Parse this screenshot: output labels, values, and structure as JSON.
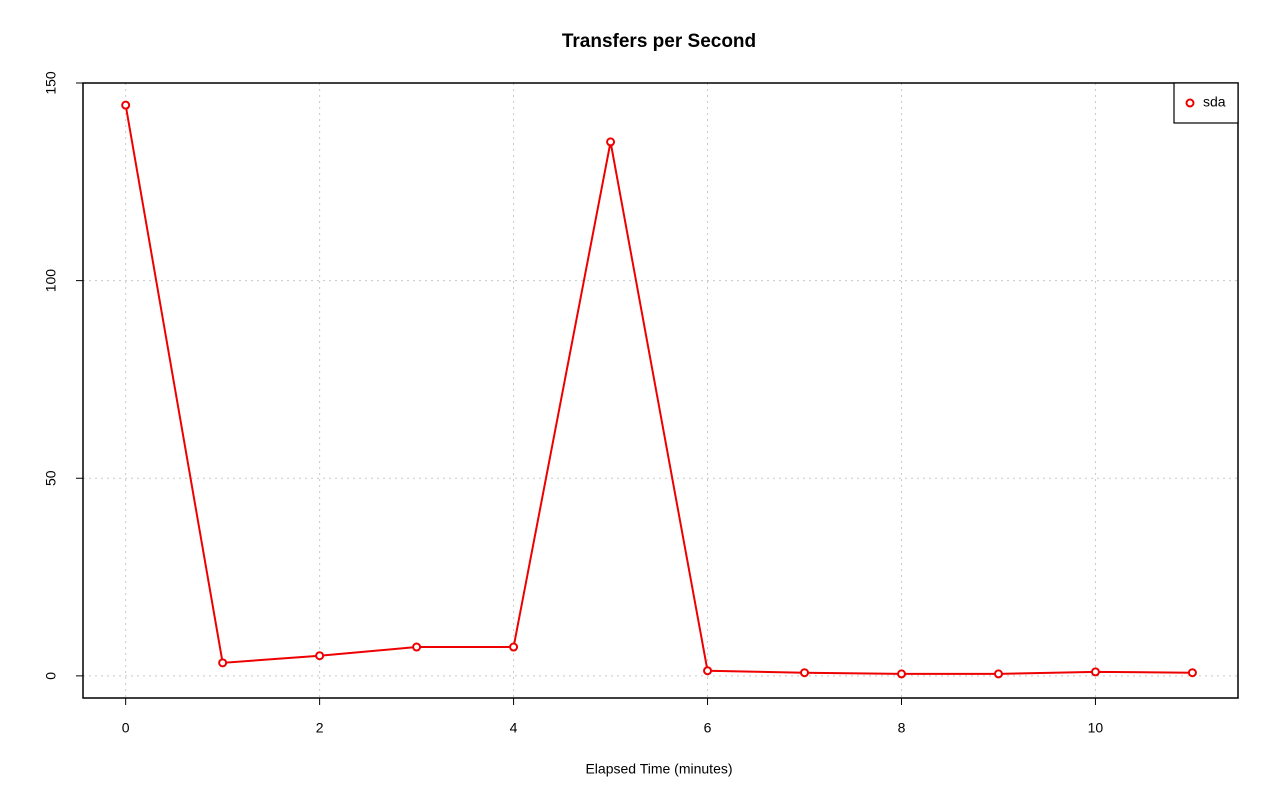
{
  "chart_data": {
    "type": "line",
    "title": "Transfers per Second",
    "x_label": "Elapsed Time (minutes)",
    "x": [
      0,
      1,
      2,
      3,
      4,
      5,
      6,
      7,
      8,
      9,
      10,
      11
    ],
    "series": [
      {
        "name": "sda",
        "color": "#ee0000",
        "values": [
          144.4,
          3.3,
          5.1,
          7.3,
          7.3,
          135.1,
          1.3,
          0.8,
          0.5,
          0.5,
          1.0,
          0.8
        ]
      }
    ],
    "xlim": [
      -0.44,
      11.47
    ],
    "ylim": [
      -5.6,
      150
    ],
    "xticks": [
      0,
      2,
      4,
      6,
      8,
      10
    ],
    "yticks": [
      0,
      50,
      100,
      150
    ],
    "grid": true,
    "legend": "top-right"
  }
}
